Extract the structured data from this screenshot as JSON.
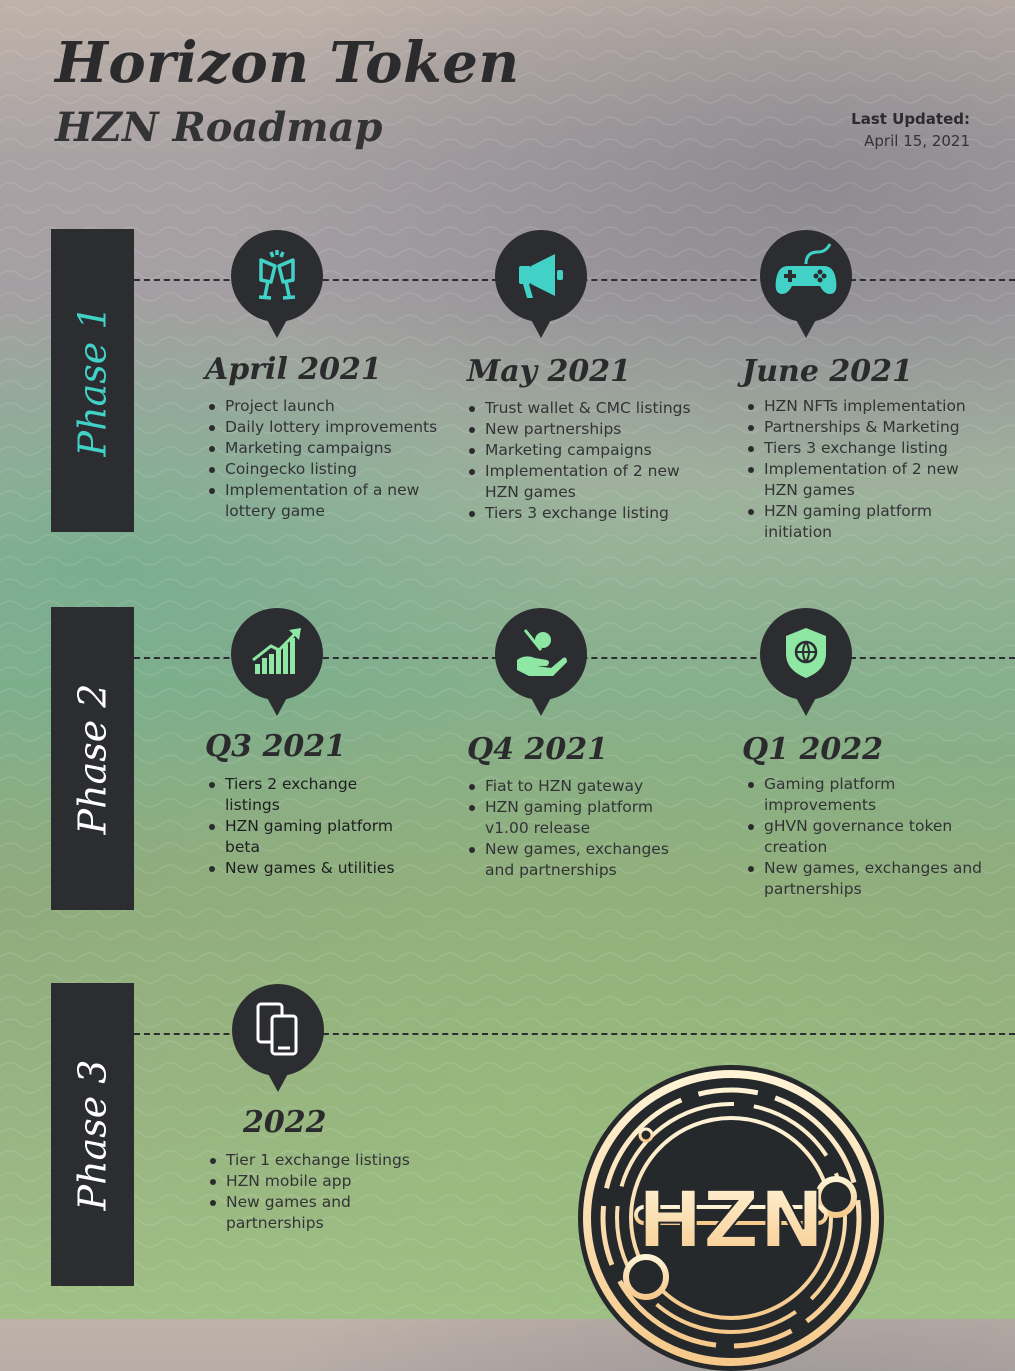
{
  "header": {
    "title": "Horizon Token",
    "subtitle": "HZN Roadmap",
    "updated_label": "Last Updated:",
    "updated_date": "April 15, 2021"
  },
  "colors": {
    "accent": "#41d1c7",
    "dark": "#2b2d30",
    "green_icon": "#8ee8a4"
  },
  "phases": [
    {
      "label": "Phase 1",
      "milestones": [
        {
          "period": "April 2021",
          "icon": "toast-glasses-icon",
          "items": [
            "Project launch",
            "Daily lottery improvements",
            "Marketing campaigns",
            "Coingecko listing",
            "Implementation of a new lottery game"
          ]
        },
        {
          "period": "May 2021",
          "icon": "megaphone-icon",
          "items": [
            "Trust wallet & CMC listings",
            "New partnerships",
            "Marketing campaigns",
            "Implementation of 2 new HZN games",
            "Tiers 3 exchange listing"
          ]
        },
        {
          "period": "June 2021",
          "icon": "gamepad-icon",
          "items": [
            "HZN NFTs implementation",
            "Partnerships & Marketing",
            "Tiers 3 exchange listing",
            "Implementation of 2 new HZN games",
            "HZN gaming platform initiation"
          ]
        }
      ]
    },
    {
      "label": "Phase 2",
      "milestones": [
        {
          "period": "Q3 2021",
          "icon": "growth-chart-icon",
          "items": [
            "Tiers 2 exchange listings",
            "HZN gaming platform beta",
            "New games & utilities"
          ]
        },
        {
          "period": "Q4 2021",
          "icon": "hand-coin-icon",
          "items": [
            "Fiat to HZN gateway",
            "HZN gaming platform v1.00 release",
            "New games, exchanges and partnerships"
          ]
        },
        {
          "period": "Q1 2022",
          "icon": "shield-globe-icon",
          "items": [
            "Gaming platform improvements",
            "gHVN governance token creation",
            "New games, exchanges and partnerships"
          ]
        }
      ]
    },
    {
      "label": "Phase 3",
      "milestones": [
        {
          "period": "2022",
          "icon": "mobile-devices-icon",
          "items": [
            "Tier 1 exchange listings",
            "HZN mobile app",
            "New games and partnerships"
          ]
        }
      ]
    }
  ],
  "logo": {
    "text": "HZN"
  }
}
